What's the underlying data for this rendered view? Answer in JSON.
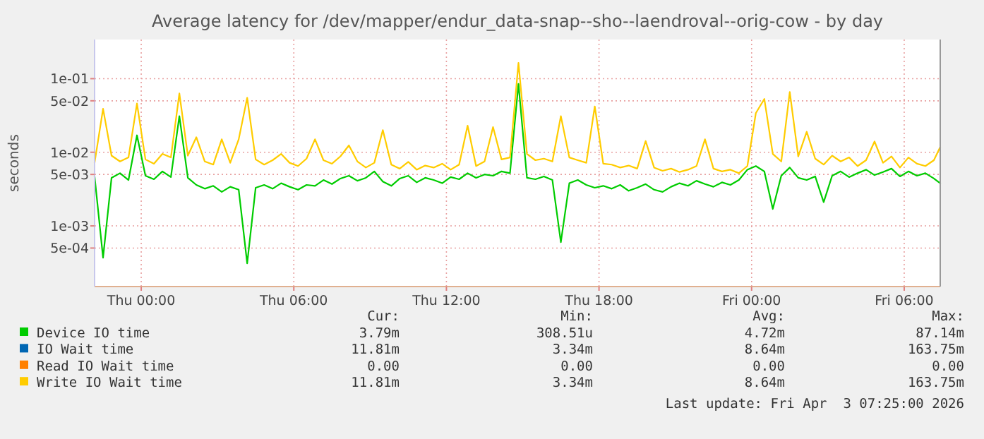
{
  "chart_data": {
    "type": "line",
    "title": "Average latency for /dev/mapper/endur_data-snap--sho--laendroval--orig-cow - by day",
    "ylabel": "seconds",
    "log": "y",
    "grid": true,
    "legend": "bottom",
    "x": [
      "2026-04-01T22:10",
      "2026-04-01T22:30",
      "2026-04-01T22:50",
      "2026-04-01T23:10",
      "2026-04-01T23:30",
      "2026-04-01T23:50",
      "2026-04-02T00:10",
      "2026-04-02T00:30",
      "2026-04-02T00:50",
      "2026-04-02T01:10",
      "2026-04-02T01:30",
      "2026-04-02T01:50",
      "2026-04-02T02:10",
      "2026-04-02T02:30",
      "2026-04-02T02:50",
      "2026-04-02T03:10",
      "2026-04-02T03:30",
      "2026-04-02T03:50",
      "2026-04-02T04:10",
      "2026-04-02T04:30",
      "2026-04-02T04:50",
      "2026-04-02T05:10",
      "2026-04-02T05:30",
      "2026-04-02T05:50",
      "2026-04-02T06:10",
      "2026-04-02T06:30",
      "2026-04-02T06:50",
      "2026-04-02T07:10",
      "2026-04-02T07:30",
      "2026-04-02T07:50",
      "2026-04-02T08:10",
      "2026-04-02T08:30",
      "2026-04-02T08:50",
      "2026-04-02T09:10",
      "2026-04-02T09:30",
      "2026-04-02T09:50",
      "2026-04-02T10:10",
      "2026-04-02T10:30",
      "2026-04-02T10:50",
      "2026-04-02T11:10",
      "2026-04-02T11:30",
      "2026-04-02T11:50",
      "2026-04-02T12:10",
      "2026-04-02T12:30",
      "2026-04-02T12:50",
      "2026-04-02T13:10",
      "2026-04-02T13:30",
      "2026-04-02T13:50",
      "2026-04-02T14:10",
      "2026-04-02T14:30",
      "2026-04-02T14:50",
      "2026-04-02T15:10",
      "2026-04-02T15:30",
      "2026-04-02T15:50",
      "2026-04-02T16:10",
      "2026-04-02T16:30",
      "2026-04-02T16:50",
      "2026-04-02T17:10",
      "2026-04-02T17:30",
      "2026-04-02T17:50",
      "2026-04-02T18:10",
      "2026-04-02T18:30",
      "2026-04-02T18:50",
      "2026-04-02T19:10",
      "2026-04-02T19:30",
      "2026-04-02T19:50",
      "2026-04-02T20:10",
      "2026-04-02T20:30",
      "2026-04-02T20:50",
      "2026-04-02T21:10",
      "2026-04-02T21:30",
      "2026-04-02T21:50",
      "2026-04-02T22:10",
      "2026-04-02T22:30",
      "2026-04-02T22:50",
      "2026-04-02T23:10",
      "2026-04-02T23:30",
      "2026-04-02T23:50",
      "2026-04-03T00:10",
      "2026-04-03T00:30",
      "2026-04-03T00:50",
      "2026-04-03T01:10",
      "2026-04-03T01:30",
      "2026-04-03T01:50",
      "2026-04-03T02:10",
      "2026-04-03T02:30",
      "2026-04-03T02:50",
      "2026-04-03T03:10",
      "2026-04-03T03:30",
      "2026-04-03T03:50",
      "2026-04-03T04:10",
      "2026-04-03T04:30",
      "2026-04-03T04:50",
      "2026-04-03T05:10",
      "2026-04-03T05:30",
      "2026-04-03T05:50",
      "2026-04-03T06:10",
      "2026-04-03T06:30",
      "2026-04-03T06:50",
      "2026-04-03T07:10",
      "2026-04-03T07:25"
    ],
    "xlim": [
      "2026-04-01T22:10",
      "2026-04-03T07:25"
    ],
    "xticks": [
      {
        "value": "2026-04-02T00:00",
        "label": "Thu 00:00"
      },
      {
        "value": "2026-04-02T06:00",
        "label": "Thu 06:00"
      },
      {
        "value": "2026-04-02T12:00",
        "label": "Thu 12:00"
      },
      {
        "value": "2026-04-02T18:00",
        "label": "Thu 18:00"
      },
      {
        "value": "2026-04-03T00:00",
        "label": "Fri 00:00"
      },
      {
        "value": "2026-04-03T06:00",
        "label": "Fri 06:00"
      }
    ],
    "ylim": [
      0.00015,
      0.34
    ],
    "yticks": [
      {
        "value": 0.0005,
        "label": "5e-04"
      },
      {
        "value": 0.001,
        "label": "1e-03"
      },
      {
        "value": 0.005,
        "label": "5e-03"
      },
      {
        "value": 0.01,
        "label": "1e-02"
      },
      {
        "value": 0.05,
        "label": "5e-02"
      },
      {
        "value": 0.1,
        "label": "1e-01"
      }
    ],
    "series": [
      {
        "name": "Device IO time",
        "color": "#00cc00",
        "values": [
          0.0047,
          0.00037,
          0.0045,
          0.0052,
          0.0042,
          0.017,
          0.0048,
          0.0043,
          0.0055,
          0.0046,
          0.031,
          0.0045,
          0.0036,
          0.0032,
          0.0035,
          0.0029,
          0.0034,
          0.0031,
          0.00031,
          0.0033,
          0.0036,
          0.0032,
          0.0038,
          0.0034,
          0.0031,
          0.0036,
          0.0035,
          0.0042,
          0.0037,
          0.0044,
          0.0048,
          0.0041,
          0.0045,
          0.0055,
          0.004,
          0.0035,
          0.0044,
          0.0048,
          0.0039,
          0.0045,
          0.0042,
          0.0038,
          0.0046,
          0.0043,
          0.0052,
          0.0045,
          0.005,
          0.0048,
          0.0055,
          0.0052,
          0.085,
          0.0045,
          0.0043,
          0.0047,
          0.0042,
          0.0006,
          0.0038,
          0.0042,
          0.0036,
          0.0033,
          0.0035,
          0.0032,
          0.0036,
          0.003,
          0.0033,
          0.0037,
          0.0031,
          0.0029,
          0.0034,
          0.0038,
          0.0035,
          0.0041,
          0.0037,
          0.0034,
          0.0039,
          0.0036,
          0.0042,
          0.0058,
          0.0065,
          0.0055,
          0.0017,
          0.0048,
          0.0062,
          0.0045,
          0.0042,
          0.0047,
          0.0021,
          0.0048,
          0.0055,
          0.0046,
          0.0052,
          0.0058,
          0.0049,
          0.0054,
          0.006,
          0.0047,
          0.0055,
          0.0048,
          0.0052,
          0.0044,
          0.00379
        ]
      },
      {
        "name": "IO Wait time",
        "color": "#0066b3",
        "values": [
          null,
          null,
          null,
          null,
          null,
          null,
          null,
          null,
          null,
          null,
          null,
          null,
          null,
          null,
          null,
          null,
          null,
          null,
          null,
          null,
          null,
          null,
          null,
          null,
          null,
          null,
          null,
          null,
          null,
          null,
          null,
          null,
          null,
          null,
          null,
          null,
          null,
          null,
          null,
          null,
          null,
          null,
          null,
          null,
          null,
          null,
          null,
          null,
          null,
          null,
          null,
          null,
          null,
          null,
          null,
          null,
          null,
          null,
          null,
          null,
          null,
          null,
          null,
          null,
          null,
          null,
          null,
          null,
          null,
          null,
          null,
          null,
          null,
          null,
          null,
          null,
          null,
          null,
          null,
          null,
          null,
          null,
          null,
          null,
          null,
          null,
          null,
          null,
          null,
          null,
          null,
          null,
          null,
          null,
          null,
          null,
          null,
          null,
          null,
          null,
          null
        ]
      },
      {
        "name": "Read IO Wait time",
        "color": "#ff8000",
        "values": [
          null,
          null,
          null,
          null,
          null,
          null,
          null,
          null,
          null,
          null,
          null,
          null,
          null,
          null,
          null,
          null,
          null,
          null,
          null,
          null,
          null,
          null,
          null,
          null,
          null,
          null,
          null,
          null,
          null,
          null,
          null,
          null,
          null,
          null,
          null,
          null,
          null,
          null,
          null,
          null,
          null,
          null,
          null,
          null,
          null,
          null,
          null,
          null,
          null,
          null,
          null,
          null,
          null,
          null,
          null,
          null,
          null,
          null,
          null,
          null,
          null,
          null,
          null,
          null,
          null,
          null,
          null,
          null,
          null,
          null,
          null,
          null,
          null,
          null,
          null,
          null,
          null,
          null,
          null,
          null,
          null,
          null,
          null,
          null,
          null,
          null,
          null,
          null,
          null,
          null,
          null,
          null,
          null,
          null,
          null,
          null,
          null,
          null,
          null,
          null,
          null
        ]
      },
      {
        "name": "Write IO Wait time",
        "color": "#ffcc00",
        "values": [
          0.0072,
          0.039,
          0.009,
          0.0075,
          0.0085,
          0.046,
          0.008,
          0.007,
          0.0095,
          0.0085,
          0.063,
          0.009,
          0.016,
          0.0075,
          0.0068,
          0.015,
          0.0072,
          0.015,
          0.055,
          0.008,
          0.0068,
          0.0078,
          0.0095,
          0.0072,
          0.0065,
          0.0082,
          0.015,
          0.0078,
          0.007,
          0.0088,
          0.0124,
          0.0075,
          0.0062,
          0.0072,
          0.02,
          0.0068,
          0.006,
          0.0074,
          0.0058,
          0.0066,
          0.0062,
          0.007,
          0.0058,
          0.0068,
          0.023,
          0.0065,
          0.0075,
          0.022,
          0.008,
          0.0085,
          0.164,
          0.0095,
          0.0078,
          0.0082,
          0.0075,
          0.031,
          0.0085,
          0.0078,
          0.0072,
          0.042,
          0.007,
          0.0068,
          0.0062,
          0.0066,
          0.006,
          0.0142,
          0.0062,
          0.0056,
          0.006,
          0.0054,
          0.0058,
          0.0065,
          0.015,
          0.006,
          0.0055,
          0.0058,
          0.0052,
          0.0065,
          0.034,
          0.053,
          0.0095,
          0.0075,
          0.066,
          0.0088,
          0.019,
          0.0082,
          0.0068,
          0.009,
          0.0075,
          0.0085,
          0.0065,
          0.0078,
          0.014,
          0.0072,
          0.0088,
          0.0062,
          0.0085,
          0.007,
          0.0065,
          0.0078,
          0.0118
        ]
      }
    ],
    "annotations": [
      "Cur:",
      "Min:",
      "Avg:",
      "Max:",
      "3.79m",
      "308.51u",
      "4.72m",
      "87.14m",
      "11.81m",
      "3.34m",
      "8.64m",
      "163.75m",
      "0.00",
      "0.00",
      "0.00",
      "0.00",
      "11.81m",
      "3.34m",
      "8.64m",
      "163.75m",
      "Last update: Fri Apr  3 07:25:00 2026"
    ]
  }
}
